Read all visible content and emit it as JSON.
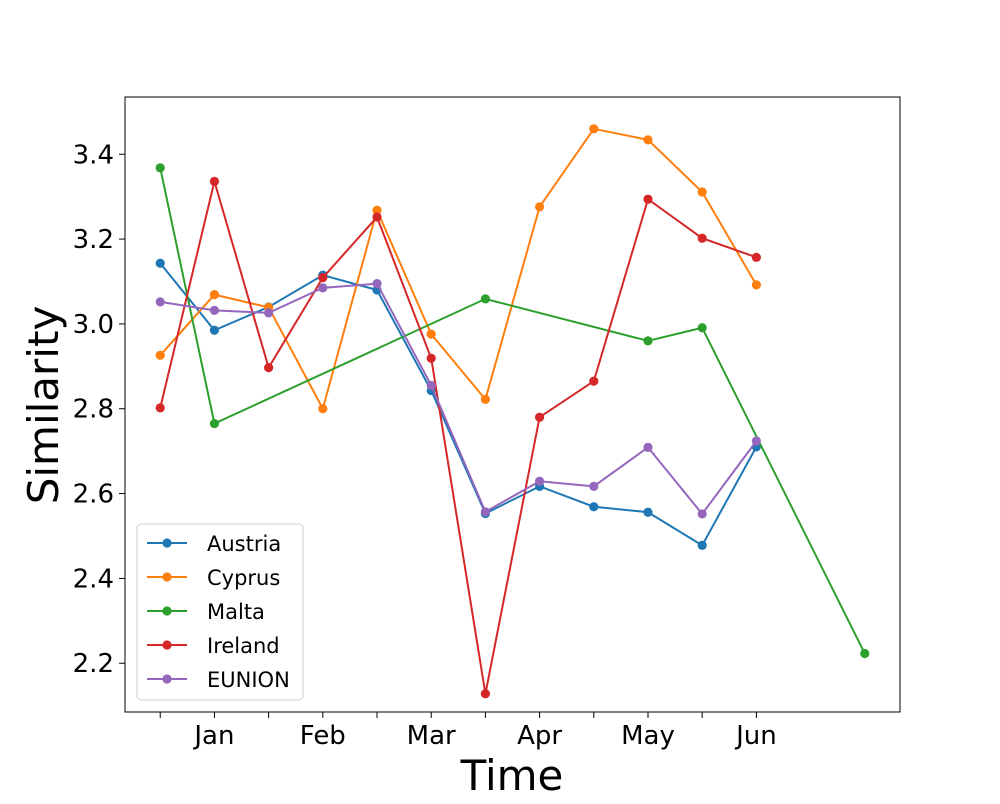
{
  "chart_data": {
    "type": "line",
    "xlabel": "Time",
    "ylabel": "Similarity",
    "x": [
      0,
      1,
      2,
      3,
      4,
      5,
      6,
      7,
      8,
      9,
      10,
      11,
      12,
      13
    ],
    "xticks": [
      {
        "pos": 0,
        "label": ""
      },
      {
        "pos": 1,
        "label": "Jan"
      },
      {
        "pos": 2,
        "label": ""
      },
      {
        "pos": 3,
        "label": "Feb"
      },
      {
        "pos": 4,
        "label": ""
      },
      {
        "pos": 5,
        "label": "Mar"
      },
      {
        "pos": 6,
        "label": ""
      },
      {
        "pos": 7,
        "label": "Apr"
      },
      {
        "pos": 8,
        "label": ""
      },
      {
        "pos": 9,
        "label": "May"
      },
      {
        "pos": 10,
        "label": ""
      },
      {
        "pos": 11,
        "label": "Jun"
      }
    ],
    "yticks": [
      2.2,
      2.4,
      2.6,
      2.8,
      3.0,
      3.2,
      3.4
    ],
    "ytick_labels": [
      "2.2",
      "2.4",
      "2.6",
      "2.8",
      "3.0",
      "3.2",
      "3.4"
    ],
    "xlim": [
      -0.65,
      13.65
    ],
    "ylim": [
      2.085,
      3.535
    ],
    "legend_position": "lower-left",
    "series": [
      {
        "name": "Austria",
        "color": "#1f77b4",
        "points": [
          [
            0,
            3.143
          ],
          [
            1,
            2.985
          ],
          [
            2,
            3.04
          ],
          [
            3,
            3.115
          ],
          [
            4,
            3.08
          ],
          [
            5,
            2.843
          ],
          [
            6,
            2.553
          ],
          [
            7,
            2.617
          ],
          [
            8,
            2.569
          ],
          [
            9,
            2.556
          ],
          [
            10,
            2.478
          ],
          [
            11,
            2.71
          ]
        ]
      },
      {
        "name": "Cyprus",
        "color": "#ff7f0e",
        "points": [
          [
            0,
            2.926
          ],
          [
            1,
            3.069
          ],
          [
            2,
            3.039
          ],
          [
            3,
            2.8
          ],
          [
            4,
            3.268
          ],
          [
            5,
            2.976
          ],
          [
            6,
            2.822
          ],
          [
            7,
            3.276
          ],
          [
            8,
            3.46
          ],
          [
            9,
            3.434
          ],
          [
            10,
            3.311
          ],
          [
            11,
            3.092
          ]
        ]
      },
      {
        "name": "Malta",
        "color": "#2ca02c",
        "points": [
          [
            0,
            3.368
          ],
          [
            1,
            2.765
          ],
          [
            6,
            3.059
          ],
          [
            9,
            2.96
          ],
          [
            10,
            2.991
          ],
          [
            13,
            2.223
          ]
        ]
      },
      {
        "name": "Ireland",
        "color": "#d62728",
        "points": [
          [
            0,
            2.802
          ],
          [
            1,
            3.336
          ],
          [
            2,
            2.897
          ],
          [
            3,
            3.109
          ],
          [
            4,
            3.252
          ],
          [
            5,
            2.919
          ],
          [
            6,
            2.128
          ],
          [
            7,
            2.78
          ],
          [
            8,
            2.865
          ],
          [
            9,
            3.294
          ],
          [
            10,
            3.202
          ],
          [
            11,
            3.157
          ]
        ]
      },
      {
        "name": "EUNION",
        "color": "#9467bd",
        "points": [
          [
            0,
            3.052
          ],
          [
            1,
            3.032
          ],
          [
            2,
            3.026
          ],
          [
            3,
            3.085
          ],
          [
            4,
            3.095
          ],
          [
            5,
            2.855
          ],
          [
            6,
            2.557
          ],
          [
            7,
            2.629
          ],
          [
            8,
            2.617
          ],
          [
            9,
            2.709
          ],
          [
            10,
            2.552
          ],
          [
            11,
            2.724
          ]
        ]
      }
    ]
  }
}
